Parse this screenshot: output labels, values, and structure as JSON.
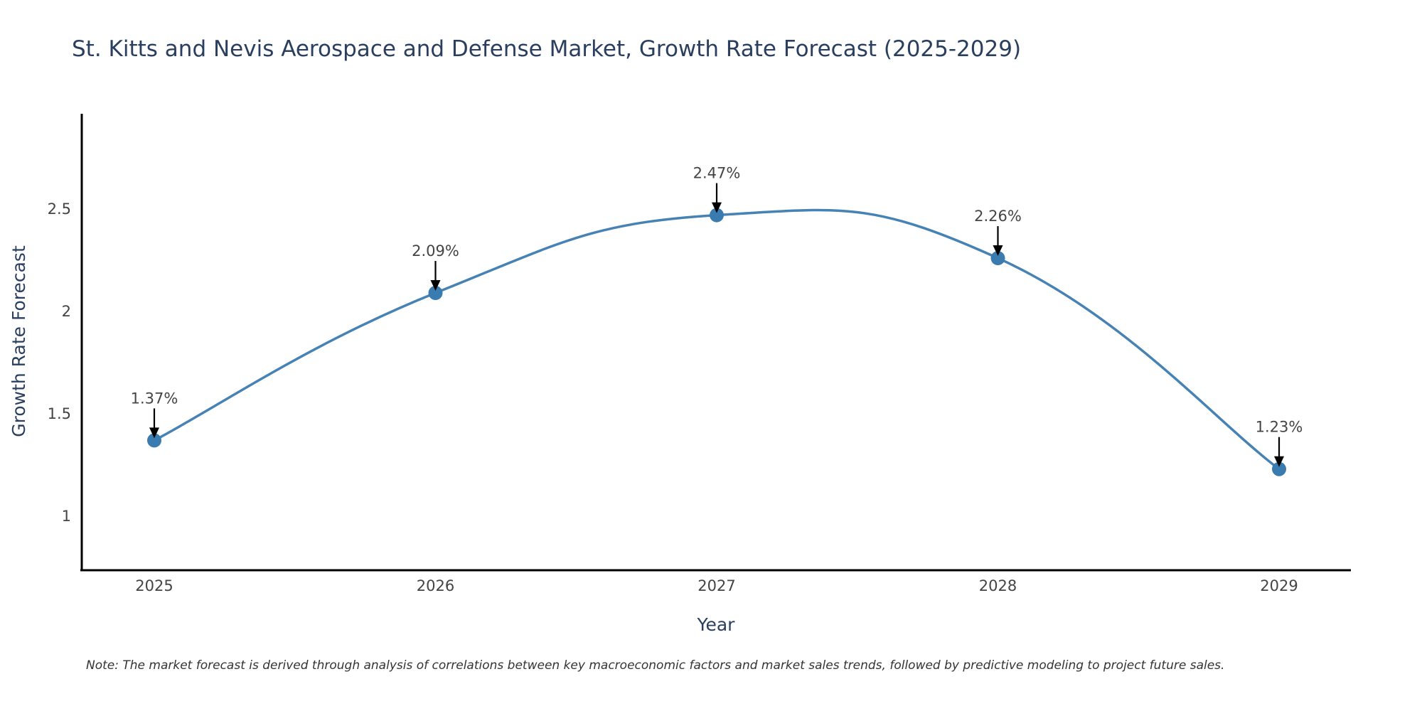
{
  "chart_data": {
    "type": "line",
    "title": "St. Kitts and Nevis Aerospace and Defense Market, Growth Rate Forecast (2025-2029)",
    "xlabel": "Year",
    "ylabel": "Growth Rate Forecast",
    "categories": [
      "2025",
      "2026",
      "2027",
      "2028",
      "2029"
    ],
    "values": [
      1.37,
      2.09,
      2.47,
      2.26,
      1.23
    ],
    "annotations": [
      "1.37%",
      "2.09%",
      "2.47%",
      "2.26%",
      "1.23%"
    ],
    "yticks": [
      1,
      1.5,
      2,
      2.5
    ],
    "ytick_labels": [
      "1",
      "1.5",
      "2",
      "2.5"
    ],
    "ylim": [
      0.736,
      2.965
    ],
    "grid": false,
    "line_shape": "spline",
    "series_color": "#4682b4",
    "marker_color": "#3a7bb0",
    "annotation_arrow_color": "#000000",
    "note": "Note: The market forecast is derived through analysis of correlations between key macroeconomic factors and market sales trends, followed by predictive modeling to project future sales."
  }
}
